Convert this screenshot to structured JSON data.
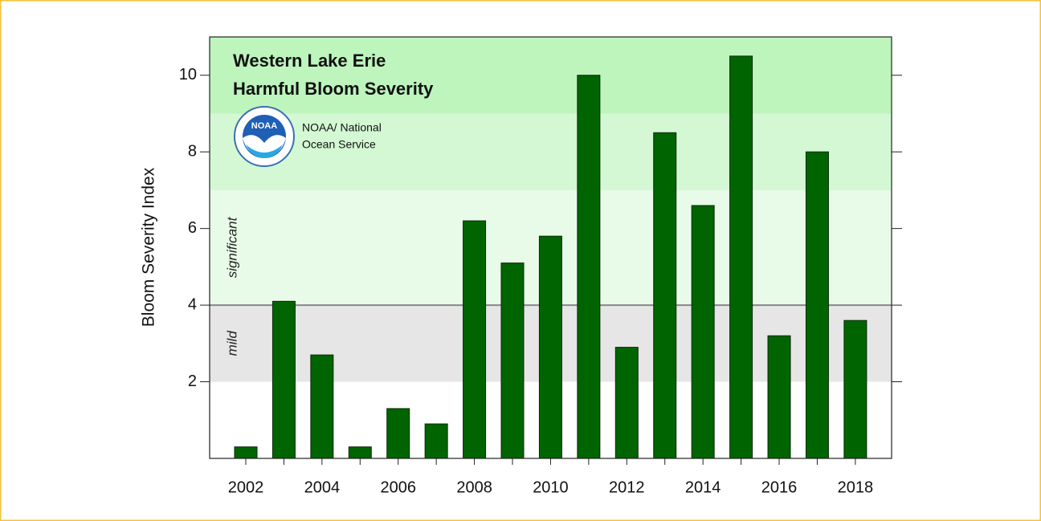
{
  "chart_data": {
    "type": "bar",
    "title_lines": [
      "Western Lake Erie",
      "Harmful Bloom Severity"
    ],
    "credit_lines": [
      "NOAA/ National",
      "Ocean Service"
    ],
    "logo_text": "NOAA",
    "y_label": "Bloom Severity Index",
    "categories": [
      "2002",
      null,
      "2004",
      null,
      "2006",
      null,
      "2008",
      null,
      "2010",
      null,
      "2012",
      null,
      "2014",
      null,
      "2016",
      null,
      "2018"
    ],
    "values": [
      0.3,
      4.1,
      2.7,
      0.3,
      1.3,
      0.9,
      6.2,
      5.1,
      5.8,
      10.0,
      2.9,
      8.5,
      6.6,
      10.5,
      3.2,
      8.0,
      3.6
    ],
    "color": "#006400",
    "ylim": [
      0,
      11
    ],
    "yticks": [
      2,
      4,
      6,
      8,
      10
    ],
    "bands": [
      {
        "from": 2,
        "to": 4,
        "color": "#e6e6e6",
        "label": "mild"
      },
      {
        "from": 4,
        "to": 7,
        "color": "#e8fbe8",
        "label": "significant"
      },
      {
        "from": 7,
        "to": 9,
        "color": "#d3f8d3"
      },
      {
        "from": 9,
        "to": 11,
        "color": "#bdf5bd"
      }
    ],
    "threshold": 4
  }
}
